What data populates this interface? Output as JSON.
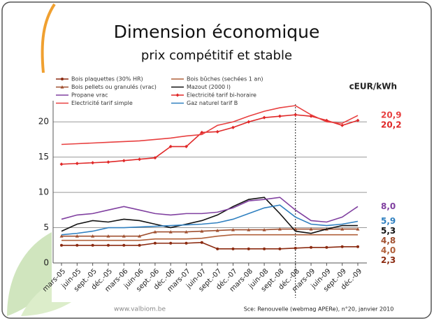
{
  "title": "Dimension économique",
  "subtitle": "prix compétitif et stable",
  "footer": {
    "website": "www.valbiom.be",
    "source": "Sce: Renouvelle (webmag APERe), n°20, janvier 2010"
  },
  "chart_data": {
    "type": "line",
    "unit": "cEUR/kWh",
    "categories": [
      "mars-05",
      "juin-05",
      "sept.-05",
      "déc.-05",
      "mars-06",
      "juin-06",
      "sept.-06",
      "déc.-06",
      "mars-07",
      "juin-07",
      "sept.-07",
      "déc.-07",
      "mars-08",
      "juin-08",
      "sept.-08",
      "déc.-08",
      "mars-09",
      "juin-09",
      "sept.-09",
      "déc.-09"
    ],
    "ylim": [
      0,
      22.5
    ],
    "yticks": [
      0,
      5,
      10,
      15,
      20
    ],
    "grid": true,
    "vline_category": 15,
    "series": [
      {
        "name": "Bois plaquettes (30% HR)",
        "color": "#8b2a10",
        "marker": "circle",
        "end_label": "2,3",
        "values": [
          2.5,
          2.5,
          2.5,
          2.5,
          2.5,
          2.5,
          2.8,
          2.8,
          2.8,
          2.9,
          2.0,
          2.0,
          2.0,
          2.0,
          2.0,
          2.1,
          2.2,
          2.2,
          2.3,
          2.3
        ]
      },
      {
        "name": "Bois bûches (sechées 1 an)",
        "color": "#b0603a",
        "marker": "none",
        "end_label": "4,0",
        "values": [
          3.2,
          3.2,
          3.2,
          3.2,
          3.2,
          3.2,
          3.4,
          3.4,
          3.4,
          3.5,
          3.8,
          4.0,
          4.0,
          4.0,
          4.0,
          4.0,
          4.0,
          4.0,
          4.0,
          4.0
        ]
      },
      {
        "name": "Bois pellets ou granulés (vrac)",
        "color": "#a05030",
        "marker": "triangle",
        "end_label": "4,8",
        "values": [
          3.8,
          3.8,
          3.8,
          3.8,
          3.8,
          3.8,
          4.4,
          4.4,
          4.4,
          4.5,
          4.6,
          4.7,
          4.7,
          4.7,
          4.8,
          4.8,
          4.8,
          4.8,
          4.8,
          4.8
        ]
      },
      {
        "name": "Mazout (2000 l)",
        "color": "#111111",
        "marker": "none",
        "end_label": "5,3",
        "values": [
          4.5,
          5.5,
          6.0,
          5.8,
          6.2,
          6.0,
          5.5,
          5.0,
          5.5,
          6.0,
          6.8,
          8.0,
          9.0,
          9.3,
          7.0,
          4.5,
          4.2,
          4.8,
          5.3,
          5.3
        ]
      },
      {
        "name": "Propane vrac",
        "color": "#8040a0",
        "marker": "none",
        "end_label": "8,0",
        "values": [
          6.2,
          6.8,
          7.0,
          7.5,
          8.0,
          7.5,
          7.0,
          6.8,
          7.0,
          7.0,
          7.2,
          7.8,
          8.8,
          9.0,
          9.3,
          7.5,
          6.0,
          5.8,
          6.5,
          8.0
        ]
      },
      {
        "name": "Electricité tarif bi-horaire",
        "color": "#e02828",
        "marker": "diamond",
        "end_label": "20,2",
        "values": [
          14.0,
          14.1,
          14.2,
          14.3,
          14.5,
          14.7,
          14.9,
          16.5,
          16.5,
          18.5,
          18.6,
          19.2,
          20.0,
          20.6,
          20.8,
          21.0,
          20.8,
          20.2,
          19.5,
          20.2
        ]
      },
      {
        "name": "Electricité tarif simple",
        "color": "#e84040",
        "marker": "none",
        "end_label": "20,9",
        "values": [
          16.8,
          16.9,
          17.0,
          17.1,
          17.2,
          17.3,
          17.5,
          17.7,
          18.0,
          18.2,
          19.5,
          20.0,
          20.8,
          21.5,
          22.0,
          22.3,
          21.0,
          20.0,
          19.8,
          20.9
        ]
      },
      {
        "name": "Gaz naturel tarif B",
        "color": "#3080c0",
        "marker": "none",
        "end_label": "5,9",
        "values": [
          4.0,
          4.2,
          4.5,
          5.0,
          5.0,
          5.1,
          5.2,
          5.3,
          5.4,
          5.5,
          5.7,
          6.2,
          7.0,
          7.8,
          8.2,
          6.5,
          5.5,
          5.3,
          5.5,
          5.9
        ]
      }
    ]
  }
}
